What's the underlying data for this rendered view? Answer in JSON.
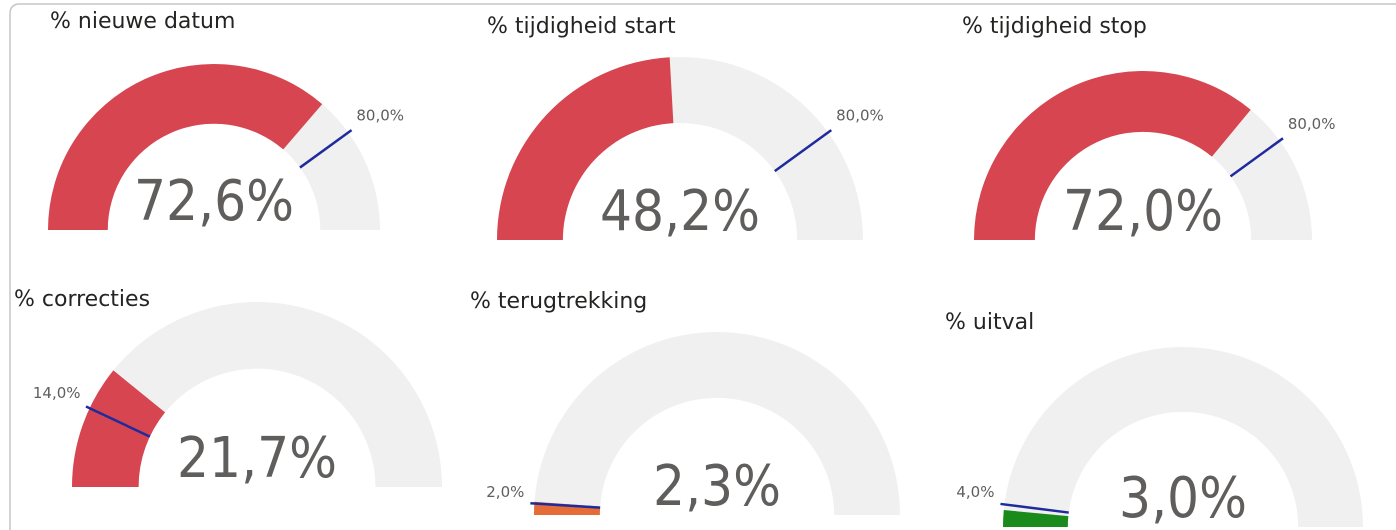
{
  "chart_data": [
    {
      "type": "gauge",
      "title": "% nieuwe datum",
      "values": [
        72.6
      ],
      "value_labels": [
        "72,6%"
      ],
      "target": 80,
      "target_label": "80,0%",
      "ylim": [
        0,
        100
      ],
      "color": "#d64550"
    },
    {
      "type": "gauge",
      "title": "% tijdigheid start",
      "values": [
        48.2
      ],
      "value_labels": [
        "48,2%"
      ],
      "target": 80,
      "target_label": "80,0%",
      "ylim": [
        0,
        100
      ],
      "color": "#d64550"
    },
    {
      "type": "gauge",
      "title": "% tijdigheid stop",
      "values": [
        72.0
      ],
      "value_labels": [
        "72,0%"
      ],
      "target": 80,
      "target_label": "80,0%",
      "ylim": [
        0,
        100
      ],
      "color": "#d64550"
    },
    {
      "type": "gauge",
      "title": "% correcties",
      "values": [
        21.7
      ],
      "value_labels": [
        "21,7%"
      ],
      "target": 14,
      "target_label": "14,0%",
      "ylim": [
        0,
        100
      ],
      "color": "#d64550"
    },
    {
      "type": "gauge",
      "title": "% terugtrekking",
      "values": [
        2.3
      ],
      "value_labels": [
        "2,3%"
      ],
      "target": 2,
      "target_label": "2,0%",
      "ylim": [
        0,
        100
      ],
      "color": "#e66c37"
    },
    {
      "type": "gauge",
      "title": "% uitval",
      "values": [
        3.0
      ],
      "value_labels": [
        "3,0%"
      ],
      "target": 4,
      "target_label": "4,0%",
      "ylim": [
        0,
        100
      ],
      "color": "#1a8a1a"
    }
  ]
}
